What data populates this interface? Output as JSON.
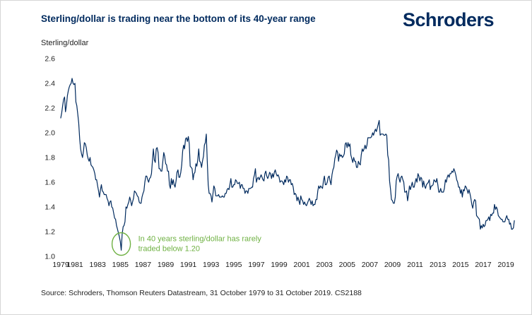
{
  "page": {
    "title": "Sterling/dollar is trading near the bottom of its 40-year range",
    "brand": "Schroders",
    "source_note": "Source: Schroders, Thomson Reuters Datastream, 31 October 1979 to 31 October 2019. CS2188"
  },
  "chart_data": {
    "type": "line",
    "title": "Sterling/dollar is trading near the bottom of its 40-year range",
    "unit_label": "Sterling/dollar",
    "x_start": "October 1979",
    "x_end": "October 2019",
    "frequency": "monthly",
    "ylim": [
      1.0,
      2.6
    ],
    "y_tick_labels": [
      "2.6",
      "2.4",
      "2.2",
      "2.0",
      "1.8",
      "1.6",
      "1.4",
      "1.2",
      "1.0"
    ],
    "x_tick_labels": [
      "1979",
      "1981",
      "1983",
      "1985",
      "1987",
      "1989",
      "1991",
      "1993",
      "1995",
      "1997",
      "1999",
      "2001",
      "2003",
      "2005",
      "2007",
      "2009",
      "2011",
      "2013",
      "2015",
      "2017",
      "2019"
    ],
    "grid": false,
    "legend": "none",
    "line_color": "#002a5e",
    "series": [
      {
        "name": "Sterling/dollar exchange rate",
        "values": [
          2.12,
          2.16,
          2.22,
          2.27,
          2.29,
          2.17,
          2.22,
          2.3,
          2.34,
          2.37,
          2.39,
          2.4,
          2.44,
          2.4,
          2.39,
          2.4,
          2.25,
          2.22,
          2.15,
          2.08,
          1.95,
          1.87,
          1.83,
          1.8,
          1.85,
          1.92,
          1.91,
          1.88,
          1.82,
          1.79,
          1.77,
          1.8,
          1.74,
          1.73,
          1.72,
          1.7,
          1.67,
          1.62,
          1.62,
          1.57,
          1.53,
          1.48,
          1.54,
          1.58,
          1.53,
          1.52,
          1.5,
          1.5,
          1.5,
          1.47,
          1.45,
          1.41,
          1.44,
          1.45,
          1.4,
          1.39,
          1.35,
          1.31,
          1.3,
          1.25,
          1.22,
          1.19,
          1.16,
          1.12,
          1.05,
          1.18,
          1.24,
          1.25,
          1.28,
          1.4,
          1.39,
          1.42,
          1.44,
          1.48,
          1.45,
          1.41,
          1.44,
          1.47,
          1.53,
          1.52,
          1.51,
          1.49,
          1.48,
          1.44,
          1.43,
          1.43,
          1.48,
          1.51,
          1.53,
          1.6,
          1.65,
          1.65,
          1.62,
          1.6,
          1.63,
          1.64,
          1.67,
          1.77,
          1.87,
          1.78,
          1.76,
          1.87,
          1.88,
          1.84,
          1.71,
          1.71,
          1.69,
          1.69,
          1.77,
          1.84,
          1.81,
          1.75,
          1.74,
          1.69,
          1.69,
          1.58,
          1.55,
          1.63,
          1.58,
          1.62,
          1.58,
          1.56,
          1.61,
          1.68,
          1.7,
          1.64,
          1.64,
          1.68,
          1.74,
          1.85,
          1.9,
          1.87,
          1.95,
          1.96,
          1.93,
          1.97,
          1.91,
          1.73,
          1.72,
          1.71,
          1.62,
          1.67,
          1.68,
          1.75,
          1.73,
          1.78,
          1.87,
          1.77,
          1.76,
          1.72,
          1.77,
          1.81,
          1.9,
          1.92,
          1.99,
          1.78,
          1.58,
          1.51,
          1.51,
          1.49,
          1.44,
          1.5,
          1.57,
          1.55,
          1.49,
          1.49,
          1.49,
          1.5,
          1.48,
          1.48,
          1.48,
          1.49,
          1.48,
          1.48,
          1.51,
          1.51,
          1.54,
          1.55,
          1.54,
          1.58,
          1.63,
          1.56,
          1.56,
          1.58,
          1.58,
          1.62,
          1.61,
          1.59,
          1.59,
          1.6,
          1.55,
          1.58,
          1.58,
          1.55,
          1.55,
          1.51,
          1.53,
          1.53,
          1.51,
          1.55,
          1.55,
          1.55,
          1.56,
          1.56,
          1.63,
          1.66,
          1.71,
          1.6,
          1.63,
          1.64,
          1.62,
          1.64,
          1.66,
          1.64,
          1.62,
          1.61,
          1.67,
          1.69,
          1.65,
          1.63,
          1.65,
          1.68,
          1.67,
          1.63,
          1.67,
          1.64,
          1.68,
          1.7,
          1.67,
          1.65,
          1.66,
          1.64,
          1.6,
          1.61,
          1.61,
          1.6,
          1.58,
          1.62,
          1.6,
          1.65,
          1.64,
          1.6,
          1.62,
          1.62,
          1.58,
          1.59,
          1.56,
          1.5,
          1.51,
          1.5,
          1.45,
          1.48,
          1.45,
          1.42,
          1.49,
          1.46,
          1.45,
          1.42,
          1.44,
          1.42,
          1.41,
          1.43,
          1.45,
          1.47,
          1.45,
          1.42,
          1.45,
          1.41,
          1.42,
          1.42,
          1.46,
          1.46,
          1.53,
          1.57,
          1.55,
          1.57,
          1.56,
          1.55,
          1.61,
          1.65,
          1.58,
          1.58,
          1.6,
          1.64,
          1.65,
          1.61,
          1.58,
          1.66,
          1.7,
          1.72,
          1.79,
          1.82,
          1.86,
          1.84,
          1.77,
          1.83,
          1.81,
          1.82,
          1.8,
          1.81,
          1.83,
          1.91,
          1.92,
          1.88,
          1.92,
          1.89,
          1.91,
          1.82,
          1.79,
          1.76,
          1.8,
          1.77,
          1.77,
          1.72,
          1.72,
          1.77,
          1.75,
          1.74,
          1.82,
          1.87,
          1.85,
          1.87,
          1.9,
          1.87,
          1.9,
          1.96,
          1.96,
          1.96,
          1.96,
          1.97,
          2.0,
          1.98,
          2.01,
          2.03,
          2.01,
          2.04,
          2.07,
          2.1,
          1.98,
          1.99,
          1.99,
          1.99,
          1.98,
          1.98,
          1.99,
          1.98,
          1.82,
          1.78,
          1.61,
          1.54,
          1.46,
          1.45,
          1.43,
          1.43,
          1.48,
          1.61,
          1.65,
          1.67,
          1.63,
          1.6,
          1.64,
          1.65,
          1.62,
          1.6,
          1.52,
          1.52,
          1.53,
          1.45,
          1.5,
          1.57,
          1.54,
          1.57,
          1.6,
          1.56,
          1.56,
          1.6,
          1.63,
          1.6,
          1.67,
          1.65,
          1.61,
          1.64,
          1.63,
          1.56,
          1.61,
          1.57,
          1.55,
          1.58,
          1.59,
          1.6,
          1.62,
          1.54,
          1.57,
          1.57,
          1.58,
          1.62,
          1.61,
          1.6,
          1.63,
          1.58,
          1.52,
          1.52,
          1.55,
          1.52,
          1.52,
          1.52,
          1.55,
          1.62,
          1.6,
          1.64,
          1.66,
          1.64,
          1.67,
          1.67,
          1.69,
          1.68,
          1.71,
          1.69,
          1.66,
          1.62,
          1.6,
          1.56,
          1.56,
          1.51,
          1.54,
          1.48,
          1.54,
          1.53,
          1.57,
          1.56,
          1.54,
          1.51,
          1.54,
          1.51,
          1.47,
          1.42,
          1.39,
          1.44,
          1.46,
          1.45,
          1.33,
          1.32,
          1.31,
          1.3,
          1.22,
          1.25,
          1.23,
          1.26,
          1.24,
          1.25,
          1.29,
          1.29,
          1.3,
          1.32,
          1.29,
          1.34,
          1.33,
          1.35,
          1.35,
          1.42,
          1.38,
          1.4,
          1.38,
          1.33,
          1.32,
          1.31,
          1.3,
          1.3,
          1.28,
          1.28,
          1.28,
          1.31,
          1.33,
          1.3,
          1.3,
          1.26,
          1.27,
          1.22,
          1.22,
          1.23,
          1.29
        ]
      }
    ],
    "annotation": {
      "lines": [
        "In 40 years sterling/dollar has rarely",
        "traded below 1.20"
      ],
      "color": "#6fb143",
      "highlight": {
        "index": 64,
        "value": 1.05
      }
    }
  }
}
